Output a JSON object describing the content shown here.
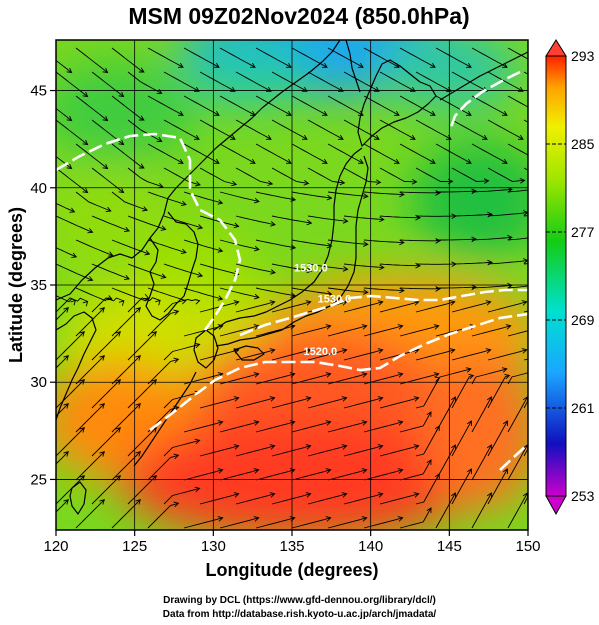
{
  "title": "MSM 09Z02Nov2024 (850.0hPa)",
  "xlabel": "Longitude (degrees)",
  "ylabel": "Latitude  (degrees)",
  "credits": {
    "line1": "Drawing by DCL (https://www.gfd-dennou.org/library/dcl/)",
    "line2": "Data from http://database.rish.kyoto-u.ac.jp/arch/jmadata/"
  },
  "chart_data": {
    "type": "heatmap",
    "x_range": [
      120,
      150
    ],
    "y_range": [
      22.4,
      47.6
    ],
    "x_ticks": [
      {
        "value": 120,
        "label": "120"
      },
      {
        "value": 125,
        "label": "125"
      },
      {
        "value": 130,
        "label": "130"
      },
      {
        "value": 135,
        "label": "135"
      },
      {
        "value": 140,
        "label": "140"
      },
      {
        "value": 145,
        "label": "145"
      },
      {
        "value": 150,
        "label": "150"
      }
    ],
    "y_ticks": [
      {
        "value": 25,
        "label": "25"
      },
      {
        "value": 30,
        "label": "30"
      },
      {
        "value": 35,
        "label": "35"
      },
      {
        "value": 40,
        "label": "40"
      },
      {
        "value": 45,
        "label": "45"
      }
    ],
    "colorbar": {
      "min": 253,
      "max": 293,
      "labels": [
        {
          "value": 293,
          "label": "293"
        },
        {
          "value": 285,
          "label": "285"
        },
        {
          "value": 277,
          "label": "277"
        },
        {
          "value": 269,
          "label": "269"
        },
        {
          "value": 261,
          "label": "261"
        },
        {
          "value": 253,
          "label": "253"
        }
      ],
      "stops": [
        "#cc00cc",
        "#1010c0",
        "#1aa6ff",
        "#00e0d0",
        "#14cc14",
        "#a0e600",
        "#f0f000",
        "#ffa000",
        "#ff2000"
      ]
    },
    "contour_labels": [
      {
        "text": "1530.0",
        "lon": 137.7,
        "lat": 34.1
      },
      {
        "text": "1520.0",
        "lon": 136.8,
        "lat": 31.4
      },
      {
        "text": "1530.0",
        "lon": 136.2,
        "lat": 35.7
      }
    ],
    "grid": true,
    "coastlines": true,
    "streamlines": true
  }
}
